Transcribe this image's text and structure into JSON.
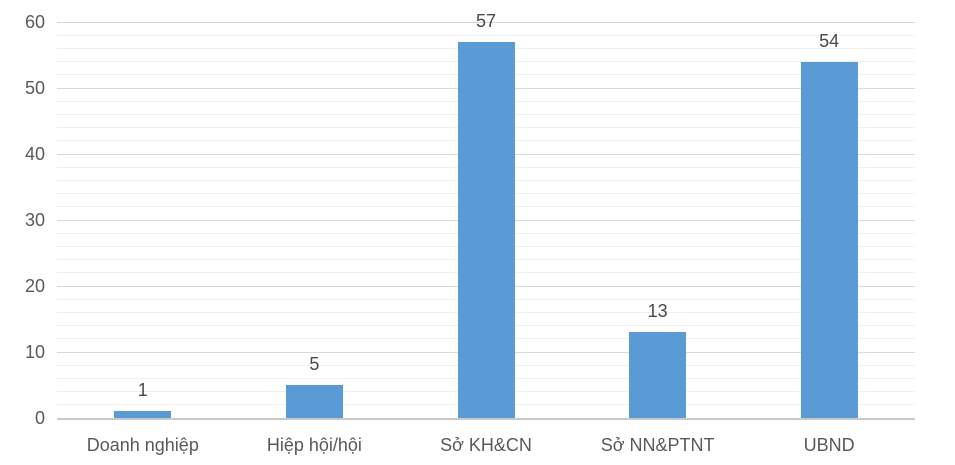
{
  "chart_data": {
    "type": "bar",
    "title": "",
    "xlabel": "",
    "ylabel": "",
    "categories": [
      "Doanh nghiệp",
      "Hiệp hội/hội",
      "Sở KH&CN",
      "Sở NN&PTNT",
      "UBND"
    ],
    "values": [
      1,
      5,
      57,
      13,
      54
    ],
    "data_labels": [
      "1",
      "5",
      "57",
      "13",
      "54"
    ],
    "ylim": [
      0,
      60
    ],
    "y_major_ticks": [
      0,
      10,
      20,
      30,
      40,
      50,
      60
    ],
    "y_minor_tick_step": 2,
    "grid": "horizontal major and minor gridlines",
    "legend": "none",
    "colors": {
      "bar_fill": "#5B9BD5",
      "major_gridline": "#D9D9D9",
      "minor_gridline": "#F0F0F0",
      "axis_line": "#C8C8C8",
      "axis_label_text": "#595959",
      "data_label_text": "#4A4A4A",
      "background": "#FFFFFF"
    }
  }
}
